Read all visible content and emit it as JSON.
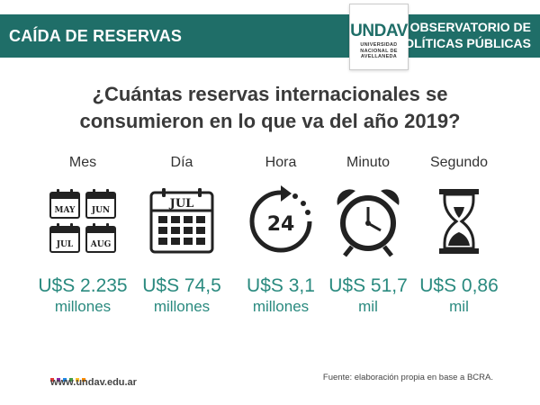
{
  "header": {
    "title": "CAÍDA DE RESERVAS",
    "right_line1": "OBSERVATORIO DE",
    "right_line2": "POLÍTICAS PÚBLICAS",
    "logo_text": "UNDAV",
    "logo_sub1": "UNIVERSIDAD",
    "logo_sub2": "NACIONAL DE",
    "logo_sub3": "AVELLANEDA"
  },
  "question": {
    "line1": "¿Cuántas reservas internacionales se",
    "line2": "consumieron en lo que va del año 2019?"
  },
  "columns": [
    {
      "unit": "Mes",
      "amount": "U$S 2.235",
      "scale": "millones",
      "icon": "calendar-grid-icon",
      "months": [
        "MAY",
        "JUN",
        "JUL",
        "AUG"
      ]
    },
    {
      "unit": "Día",
      "amount": "U$S 74,5",
      "scale": "millones",
      "icon": "calendar-day-icon",
      "month": "JUL"
    },
    {
      "unit": "Hora",
      "amount": "U$S 3,1",
      "scale": "millones",
      "icon": "24-hours-icon",
      "hours": "24"
    },
    {
      "unit": "Minuto",
      "amount": "U$S 51,7",
      "scale": "mil",
      "icon": "alarm-clock-icon"
    },
    {
      "unit": "Segundo",
      "amount": "U$S 0,86",
      "scale": "mil",
      "icon": "hourglass-icon"
    }
  ],
  "footer": {
    "url": "www.undav.edu.ar",
    "source": "Fuente: elaboración propia en base a BCRA.",
    "dot_colors": [
      "#e53935",
      "#8e24aa",
      "#1e88e5",
      "#43a047",
      "#fbc02d",
      "#fb8c00"
    ]
  },
  "colors": {
    "header_bg": "#1f6e68",
    "accent_text": "#2a8a7f"
  }
}
